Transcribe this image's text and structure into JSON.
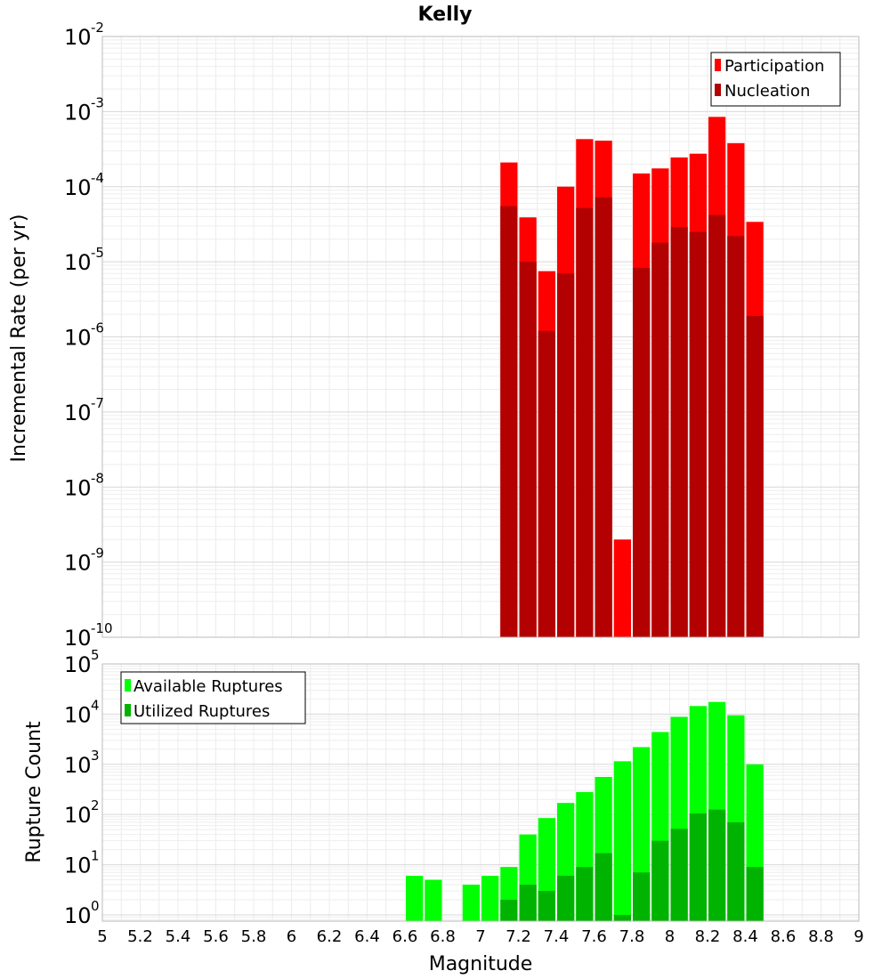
{
  "chart_data": [
    {
      "type": "bar",
      "title": "Kelly",
      "xlabel": "",
      "ylabel": "Incremental Rate (per yr)",
      "yscale": "log",
      "ylim": [
        1e-10,
        0.01
      ],
      "xlim": [
        5,
        9
      ],
      "bin_width": 0.1,
      "legend_position": "top-right",
      "colors": {
        "Participation": "#ff0000",
        "Nucleation": "#b30000"
      },
      "series": [
        {
          "name": "Participation",
          "x": [
            7.15,
            7.25,
            7.35,
            7.45,
            7.55,
            7.65,
            7.75,
            7.85,
            7.95,
            8.05,
            8.15,
            8.25,
            8.35,
            8.45
          ],
          "values": [
            0.00021,
            3.9e-05,
            7.5e-06,
            0.0001,
            0.00043,
            0.00041,
            2e-09,
            0.00015,
            0.000175,
            0.000245,
            0.000275,
            0.00085,
            0.00038,
            3.4e-05
          ]
        },
        {
          "name": "Nucleation",
          "x": [
            7.15,
            7.25,
            7.35,
            7.45,
            7.55,
            7.65,
            7.75,
            7.85,
            7.95,
            8.05,
            8.15,
            8.25,
            8.35,
            8.45
          ],
          "values": [
            5.5e-05,
            1e-05,
            1.2e-06,
            7e-06,
            5.2e-05,
            7.2e-05,
            null,
            8.3e-06,
            1.8e-05,
            2.9e-05,
            2.5e-05,
            4.2e-05,
            2.2e-05,
            1.9e-06
          ]
        }
      ]
    },
    {
      "type": "bar",
      "title": "",
      "xlabel": "Magnitude",
      "ylabel": "Rupture Count",
      "yscale": "log",
      "ylim": [
        0.75,
        100000.0
      ],
      "xlim": [
        5,
        9
      ],
      "bin_width": 0.1,
      "legend_position": "top-left",
      "colors": {
        "Available Ruptures": "#00ff00",
        "Utilized Ruptures": "#00b300"
      },
      "xticks": [
        "5",
        "5.2",
        "5.4",
        "5.6",
        "5.8",
        "6",
        "6.2",
        "6.4",
        "6.6",
        "6.8",
        "7",
        "7.2",
        "7.4",
        "7.6",
        "7.8",
        "8",
        "8.2",
        "8.4",
        "8.6",
        "8.8",
        "9"
      ],
      "series": [
        {
          "name": "Available Ruptures",
          "x": [
            6.65,
            6.75,
            6.95,
            7.05,
            7.15,
            7.25,
            7.35,
            7.45,
            7.55,
            7.65,
            7.75,
            7.85,
            7.95,
            8.05,
            8.15,
            8.25,
            8.35,
            8.45
          ],
          "values": [
            6,
            5,
            4,
            6,
            9,
            40,
            85,
            170,
            280,
            560,
            1150,
            2200,
            4400,
            8800,
            14500,
            17500,
            9500,
            1000
          ]
        },
        {
          "name": "Utilized Ruptures",
          "x": [
            7.15,
            7.25,
            7.35,
            7.45,
            7.55,
            7.65,
            7.75,
            7.85,
            7.95,
            8.05,
            8.15,
            8.25,
            8.35,
            8.45
          ],
          "values": [
            2,
            4,
            3,
            6,
            9,
            17,
            1,
            7,
            30,
            52,
            105,
            125,
            70,
            9
          ]
        }
      ]
    }
  ]
}
